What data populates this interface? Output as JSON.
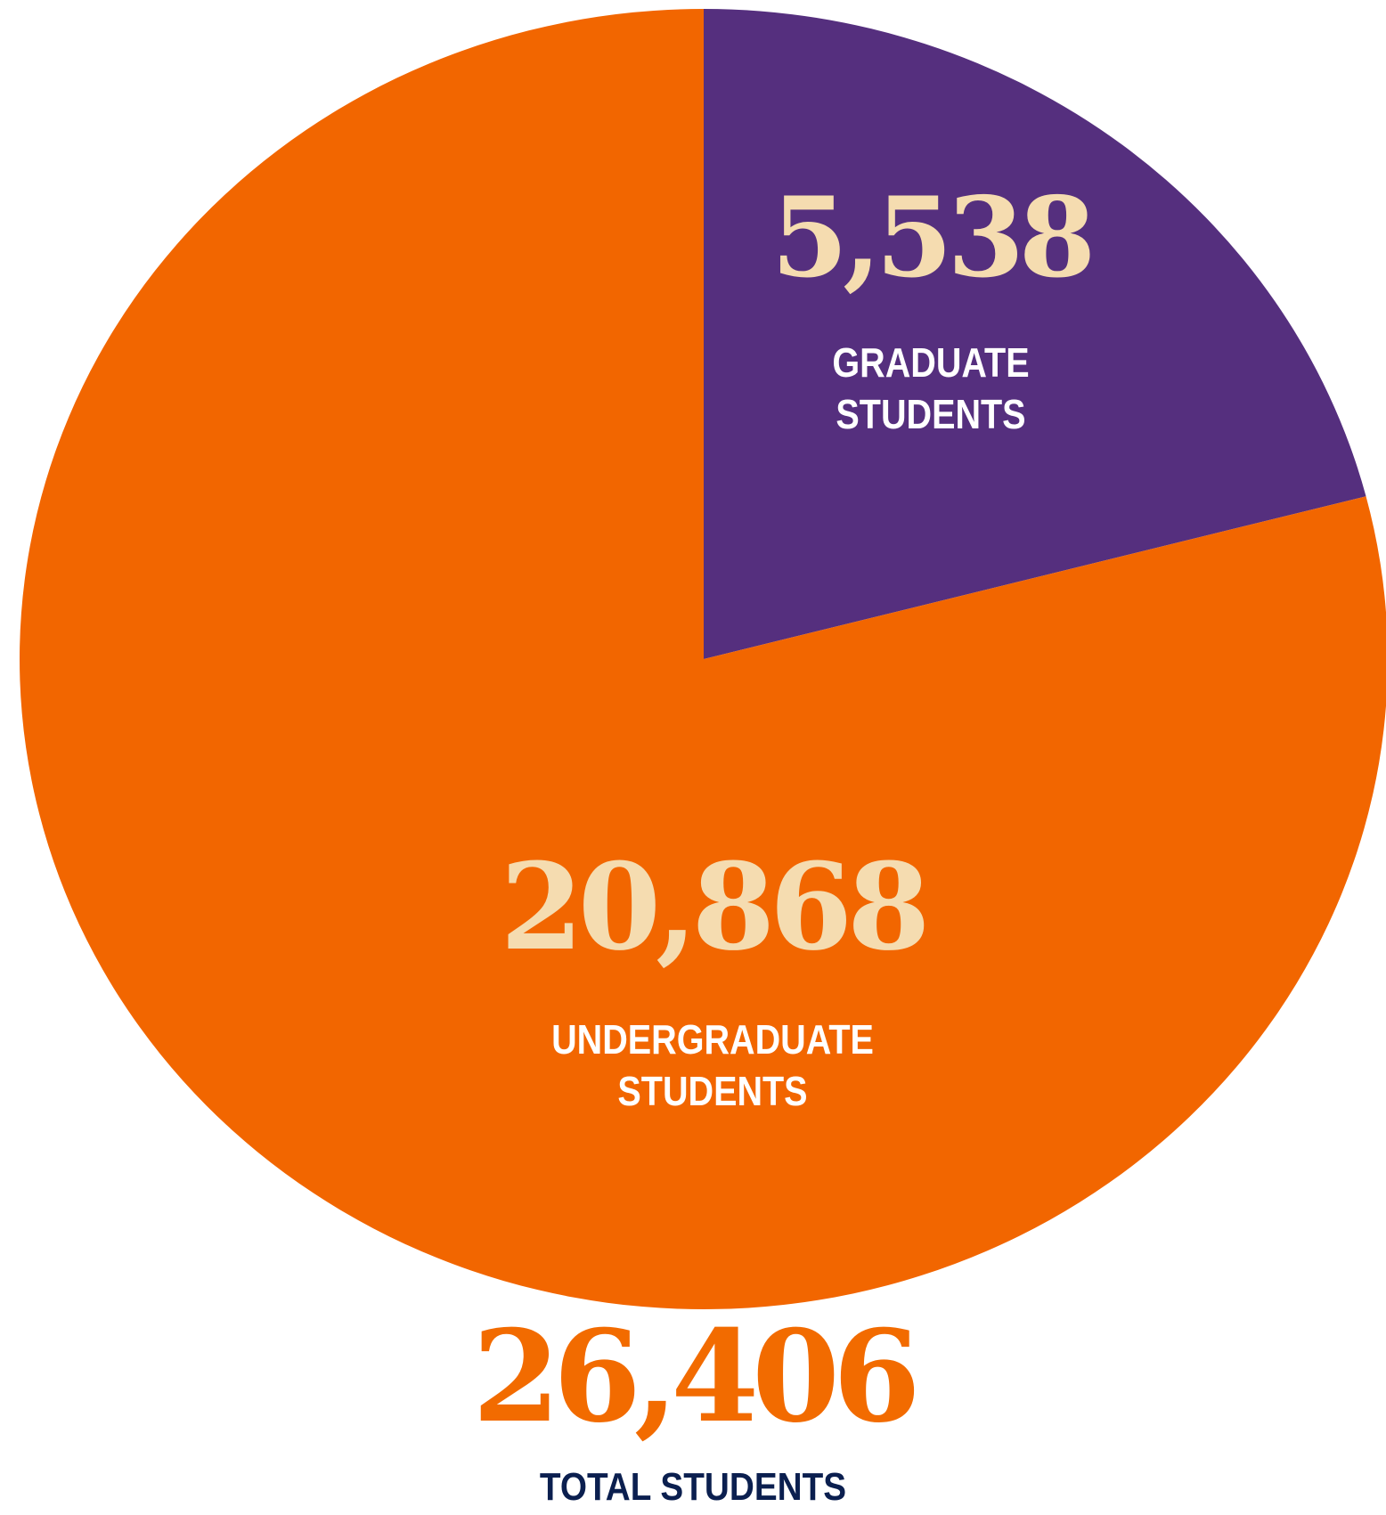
{
  "chart_data": {
    "type": "pie",
    "slices": [
      {
        "value": 5538,
        "value_label": "5,538",
        "label_lines": [
          "GRADUATE",
          "STUDENTS"
        ],
        "color": "#552f7e",
        "text_color": "#ffffff"
      },
      {
        "value": 20868,
        "value_label": "20,868",
        "label_lines": [
          "UNDERGRADUATE",
          "STUDENTS"
        ],
        "color": "#f26600",
        "text_color": "#ffffff"
      }
    ],
    "value_label_color": "#f5dcb0",
    "total": {
      "value": 26406,
      "value_label": "26,406",
      "label": "TOTAL STUDENTS",
      "value_color": "#f26b00",
      "label_color": "#0b1f4f"
    }
  }
}
